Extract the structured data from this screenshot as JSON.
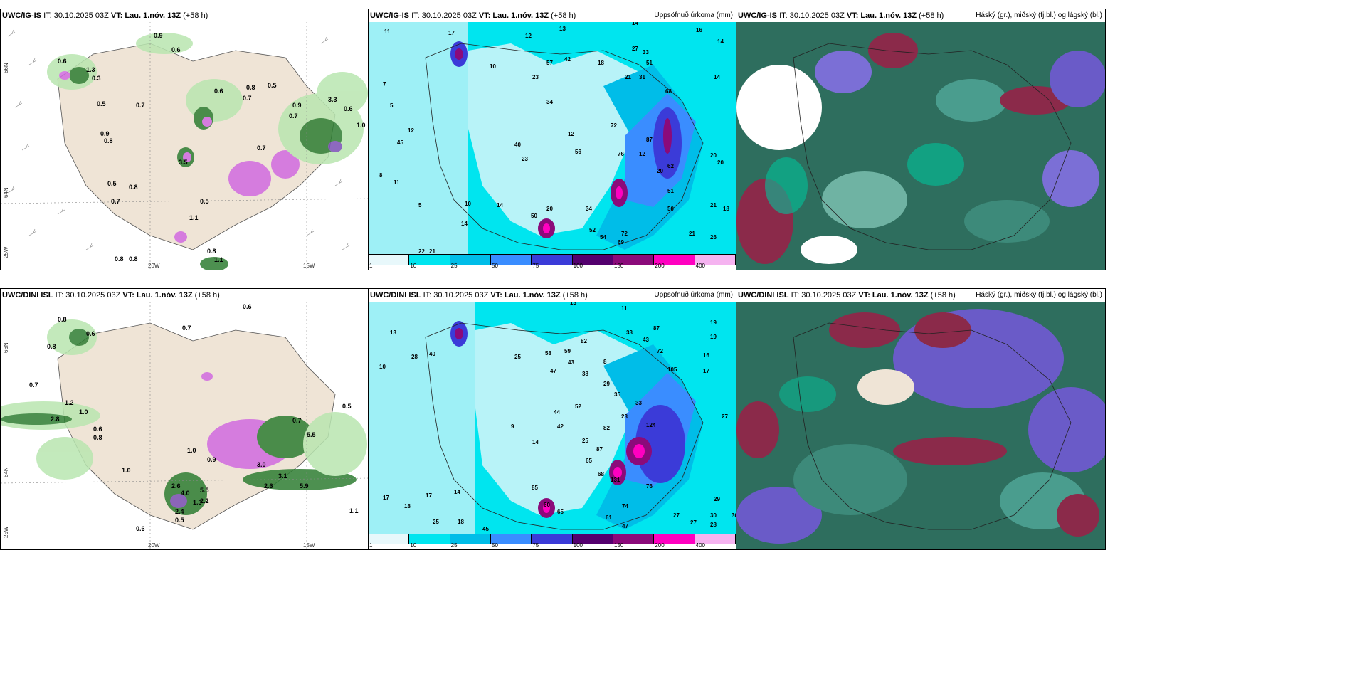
{
  "panels": [
    {
      "model_bold": "UWC/IG-IS",
      "it": "IT: 30.10.2025 03Z",
      "vt_label": "VT:",
      "vt": "Lau. 1.nóv. 13Z",
      "lead": "(+58 h)",
      "right": ""
    },
    {
      "model_bold": "UWC/IG-IS",
      "it": "IT: 30.10.2025 03Z",
      "vt_label": "VT:",
      "vt": "Lau. 1.nóv. 13Z",
      "lead": "(+58 h)",
      "right": "Uppsöfnuð úrkoma (mm)"
    },
    {
      "model_bold": "UWC/IG-IS",
      "it": "IT: 30.10.2025 03Z",
      "vt_label": "VT:",
      "vt": "Lau. 1.nóv. 13Z",
      "lead": "(+58 h)",
      "right": "Háský (gr.), miðský (fj.bl.) og lágský (bl.)"
    },
    {
      "model_bold": "UWC/DINI ISL",
      "it": "IT: 30.10.2025 03Z",
      "vt_label": "VT:",
      "vt": "Lau. 1.nóv. 13Z",
      "lead": "(+58 h)",
      "right": ""
    },
    {
      "model_bold": "UWC/DINI ISL",
      "it": "IT: 30.10.2025 03Z",
      "vt_label": "VT:",
      "vt": "Lau. 1.nóv. 13Z",
      "lead": "(+58 h)",
      "right": "Uppsöfnuð úrkoma (mm)"
    },
    {
      "model_bold": "UWC/DINI ISL",
      "it": "IT: 30.10.2025 03Z",
      "vt_label": "VT:",
      "vt": "Lau. 1.nóv. 13Z",
      "lead": "(+58 h)",
      "right": "Háský (gr.), miðský (fj.bl.) og lágský (bl.)"
    }
  ],
  "lon_labels": {
    "a": "20W",
    "b": "15W"
  },
  "lat_labels": {
    "a": "66N",
    "b": "64N",
    "c": "25W"
  },
  "colorbar": {
    "labels": [
      "1",
      "10",
      "25",
      "50",
      "75",
      "100",
      "150",
      "200",
      "400"
    ],
    "colors": [
      "#e8f8fb",
      "#00e5ef",
      "#00bde8",
      "#3a8dff",
      "#3b3bd8",
      "#54006e",
      "#8b0a7a",
      "#ff00c0",
      "#f5b3f0"
    ]
  },
  "precip_values_top": [
    "11",
    "17",
    "12",
    "13",
    "14",
    "16",
    "14",
    "129",
    "55",
    "7",
    "5",
    "10",
    "23",
    "57",
    "42",
    "18",
    "21",
    "27",
    "33",
    "51",
    "34",
    "31",
    "68",
    "14",
    "12",
    "45",
    "40",
    "50",
    "23",
    "56",
    "12",
    "17",
    "72",
    "76",
    "87",
    "12",
    "20",
    "62",
    "16",
    "11",
    "41",
    "20",
    "15",
    "74",
    "38",
    "85",
    "134",
    "12",
    "26",
    "71",
    "54",
    "50",
    "31",
    "40",
    "21",
    "18",
    "8",
    "9",
    "7",
    "6",
    "14",
    "5",
    "15",
    "16",
    "27",
    "48",
    "40",
    "22",
    "84",
    "44",
    "70",
    "52",
    "69",
    "14",
    "21",
    "26"
  ],
  "precip_values_bottom": [
    "13",
    "11",
    "13",
    "33",
    "16",
    "19",
    "10",
    "17",
    "28",
    "90",
    "25",
    "58",
    "59",
    "82",
    "43",
    "28",
    "50",
    "26",
    "14",
    "48",
    "63",
    "27",
    "47",
    "38",
    "52",
    "44",
    "79",
    "38",
    "29",
    "35",
    "72",
    "105",
    "8",
    "9",
    "27",
    "17",
    "6",
    "14",
    "56",
    "73",
    "87",
    "82",
    "25",
    "42",
    "44",
    "124",
    "35",
    "93",
    "16",
    "14",
    "47",
    "13",
    "23",
    "59",
    "68",
    "115",
    "131",
    "17",
    "18",
    "60",
    "76",
    "68",
    "61",
    "74",
    "29",
    "25",
    "21",
    "65",
    "45",
    "47",
    "28",
    "30",
    "30"
  ],
  "wind_values_top": [
    "0.6",
    "0.9",
    "0.6",
    "1.3",
    "0.3",
    "0.5",
    "0.7",
    "0.8",
    "0.6",
    "0.7",
    "0.9",
    "0.8",
    "1.3",
    "1.5",
    "0.9",
    "1.1",
    "0.7",
    "0.5",
    "0.6",
    "3.3",
    "0.6",
    "1.0",
    "0.9",
    "0.8",
    "0.5",
    "0.7",
    "0.9",
    "0.8",
    "1.7",
    "0.5",
    "1.1",
    "0.9",
    "0.8",
    "0.7"
  ],
  "wind_values_bottom": [
    "0.8",
    "0.6",
    "0.7",
    "0.8",
    "1.0",
    "0.5",
    "0.7",
    "0.6",
    "0.8",
    "1.2",
    "2.8",
    "1.0",
    "0.5",
    "0.8",
    "1.0",
    "0.9",
    "0.6",
    "5.5",
    "2.6",
    "4.0",
    "2.2",
    "5.9",
    "3.1",
    "1.1",
    "0.5",
    "0.6",
    "2.4",
    "0.7",
    "1.0",
    "0.9",
    "3.0",
    "5.8"
  ]
}
